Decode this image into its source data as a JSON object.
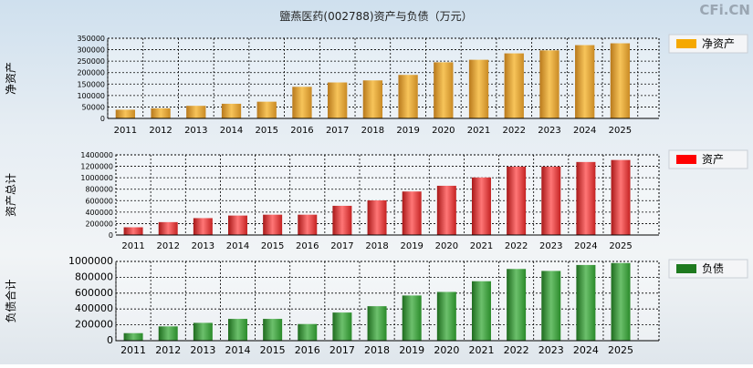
{
  "title": "鹽燕医药(002788)资产与负债（万元）",
  "watermark": "CFi.CN",
  "chart_data": [
    {
      "type": "bar",
      "ylabel": "净资产",
      "legend": "净资产",
      "legend_color": "#f5a800",
      "bar_colors": [
        "#b8791c",
        "#f7c45a",
        "#c98a24"
      ],
      "ylim": [
        0,
        350000
      ],
      "yticks": [
        0,
        50000,
        100000,
        150000,
        200000,
        250000,
        300000,
        350000
      ],
      "categories": [
        "2011",
        "2012",
        "2013",
        "2014",
        "2015",
        "2016",
        "2017",
        "2018",
        "2019",
        "2020",
        "2021",
        "2022",
        "2023",
        "2024",
        "2025"
      ],
      "values": [
        38000,
        44000,
        55000,
        64000,
        73000,
        138000,
        157000,
        166000,
        190000,
        245000,
        256000,
        284000,
        297000,
        320000,
        328000
      ]
    },
    {
      "type": "bar",
      "ylabel": "资产总计",
      "legend": "资产",
      "legend_color": "#ff0000",
      "bar_colors": [
        "#a81818",
        "#ff7676",
        "#c42222"
      ],
      "ylim": [
        0,
        1400000
      ],
      "yticks": [
        0,
        200000,
        400000,
        600000,
        800000,
        1000000,
        1200000,
        1400000
      ],
      "categories": [
        "2011",
        "2012",
        "2013",
        "2014",
        "2015",
        "2016",
        "2017",
        "2018",
        "2019",
        "2020",
        "2021",
        "2022",
        "2023",
        "2024",
        "2025"
      ],
      "values": [
        135000,
        225000,
        295000,
        340000,
        355000,
        355000,
        510000,
        605000,
        760000,
        860000,
        1005000,
        1195000,
        1195000,
        1275000,
        1310000
      ]
    },
    {
      "type": "bar",
      "ylabel": "负债合计",
      "legend": "负债",
      "legend_color": "#1f7a1f",
      "bar_colors": [
        "#1e6b1e",
        "#6cc06c",
        "#2a8a2a"
      ],
      "ylim": [
        0,
        1000000
      ],
      "yticks": [
        0,
        200000,
        400000,
        600000,
        800000,
        1000000
      ],
      "categories": [
        "2011",
        "2012",
        "2013",
        "2014",
        "2015",
        "2016",
        "2017",
        "2018",
        "2019",
        "2020",
        "2021",
        "2022",
        "2023",
        "2024",
        "2025"
      ],
      "values": [
        95000,
        180000,
        225000,
        275000,
        275000,
        210000,
        355000,
        435000,
        570000,
        615000,
        750000,
        905000,
        880000,
        955000,
        980000
      ]
    }
  ]
}
